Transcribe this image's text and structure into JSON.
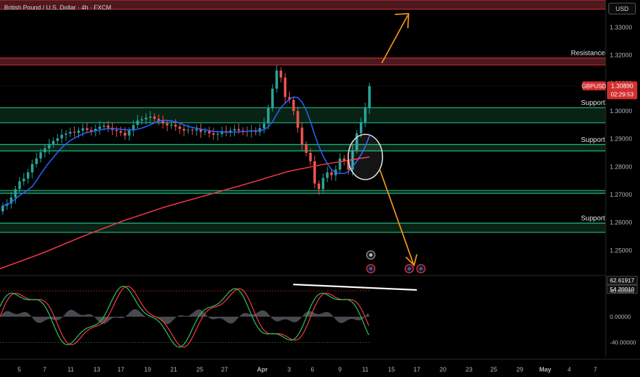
{
  "header": {
    "title": "British Pound / U.S. Dollar · 4h · FXCM",
    "currency": "USD"
  },
  "colors": {
    "background": "#000000",
    "up": "#26a69a",
    "down": "#ef5350",
    "sma_fast": "#2962ff",
    "sma_slow": "#f23645",
    "resistance_zone": "#5c1c24",
    "support_zone": "#0e3a22",
    "zone_line_red": "#c62828",
    "zone_line_green": "#1fbf8a",
    "arrow": "#f7931a",
    "stoch_k": "#2ebd5a",
    "stoch_d": "#f23645",
    "histogram": "#787b86"
  },
  "chart_data": [
    {
      "type": "line",
      "subtype": "candlestick",
      "symbol": "GBPUSD",
      "last_price": "1.30890",
      "countdown": "02:29:53",
      "y_axis_ticks": [
        "1.33000",
        "1.32000",
        "1.31000",
        "1.30000",
        "1.29000",
        "1.28000",
        "1.27000",
        "1.26000",
        "1.25000"
      ],
      "x_axis_ticks": [
        "5",
        "7",
        "11",
        "13",
        "17",
        "19",
        "21",
        "25",
        "27",
        "Apr",
        "3",
        "6",
        "9",
        "11",
        "15",
        "17",
        "20",
        "23",
        "25",
        "29",
        "May",
        "4",
        "7"
      ],
      "ylim": [
        1.2415,
        1.3398
      ],
      "zones": [
        {
          "kind": "resistance",
          "label": "Resistance",
          "from": 1.3365,
          "to": 1.3398
        },
        {
          "kind": "resistance",
          "label": "Resistance",
          "from": 1.3165,
          "to": 1.319
        },
        {
          "kind": "support",
          "label": "Support",
          "from": 1.2958,
          "to": 1.3012
        },
        {
          "kind": "support",
          "label": "Support",
          "from": 1.2857,
          "to": 1.288
        },
        {
          "kind": "support",
          "label": "",
          "from": 1.2705,
          "to": 1.2715
        },
        {
          "kind": "support",
          "label": "Support",
          "from": 1.2565,
          "to": 1.2598
        }
      ],
      "series": [
        {
          "name": "GBPUSD",
          "close": [
            1.266,
            1.2668,
            1.269,
            1.272,
            1.2748,
            1.2758,
            1.278,
            1.281,
            1.283,
            1.2852,
            1.2866,
            1.288,
            1.2893,
            1.2902,
            1.2915,
            1.2919,
            1.2925,
            1.2922,
            1.293,
            1.2938,
            1.2932,
            1.2927,
            1.2936,
            1.2944,
            1.2948,
            1.294,
            1.2932,
            1.2928,
            1.2922,
            1.2912,
            1.293,
            1.295,
            1.2966,
            1.297,
            1.2976,
            1.298,
            1.2972,
            1.2964,
            1.2955,
            1.2948,
            1.2951,
            1.2944,
            1.2936,
            1.293,
            1.2932,
            1.293,
            1.2935,
            1.2925,
            1.2928,
            1.292,
            1.2915,
            1.2918,
            1.2928,
            1.2925,
            1.293,
            1.2935,
            1.293,
            1.2928,
            1.2926,
            1.293,
            1.2925,
            1.2938,
            1.2955,
            1.301,
            1.308,
            1.3145,
            1.312,
            1.305,
            1.304,
            1.3,
            1.294,
            1.288,
            1.285,
            1.282,
            1.274,
            1.272,
            1.276,
            1.278,
            1.277,
            1.279,
            1.283,
            1.282,
            1.279,
            1.286,
            1.292,
            1.296,
            1.301,
            1.3089
          ]
        },
        {
          "name": "",
          "values": []
        }
      ]
    },
    {
      "type": "line",
      "subtype": "stochastic-rsi",
      "values_readout": [
        "62.61917",
        "54.20010"
      ],
      "y_axis_ticks": [
        "40.00000",
        "0.00000",
        "-40.00000"
      ],
      "ylim": [
        -62,
        62
      ],
      "trendline_label": ""
    }
  ],
  "annotations": {
    "price_label": "GBPUSD",
    "labels": [
      "Resistance",
      "Resistance",
      "Support",
      "Support",
      "Support"
    ]
  }
}
